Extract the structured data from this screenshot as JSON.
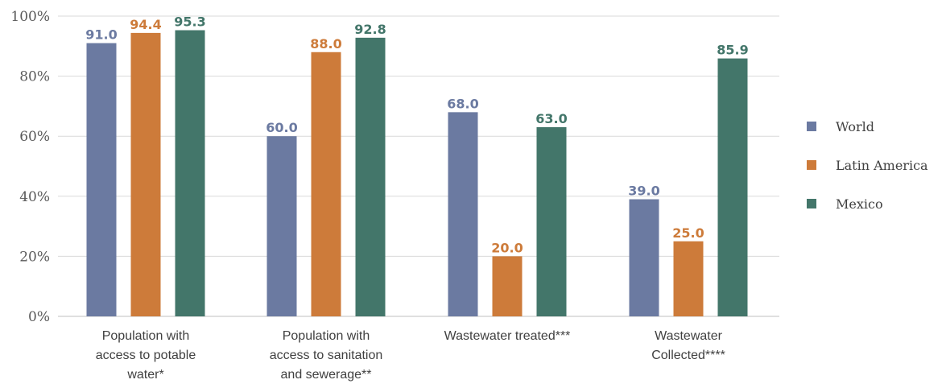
{
  "chart_data": {
    "type": "bar",
    "categories": [
      [
        "Population with",
        "access to potable",
        "water*"
      ],
      [
        "Population with",
        "access to sanitation",
        "and sewerage**"
      ],
      [
        "Wastewater treated***"
      ],
      [
        "Wastewater",
        "Collected****"
      ]
    ],
    "series": [
      {
        "name": "World",
        "color": "#6b7aa1",
        "values": [
          91.0,
          60.0,
          68.0,
          39.0
        ],
        "labels": [
          "91.0",
          "60.0",
          "68.0",
          "39.0"
        ]
      },
      {
        "name": "Latin America",
        "color": "#cd7b3a",
        "values": [
          94.4,
          88.0,
          20.0,
          25.0
        ],
        "labels": [
          "94.4",
          "88.0",
          "20.0",
          "25.0"
        ]
      },
      {
        "name": "Mexico",
        "color": "#43766a",
        "values": [
          95.3,
          92.8,
          63.0,
          85.9
        ],
        "labels": [
          "95.3",
          "92.8",
          "63.0",
          "85.9"
        ]
      }
    ],
    "yticks": [
      "0%",
      "20%",
      "40%",
      "60%",
      "80%",
      "100%"
    ],
    "ylim": [
      0,
      100
    ],
    "grid": true,
    "legend_position": "right"
  }
}
